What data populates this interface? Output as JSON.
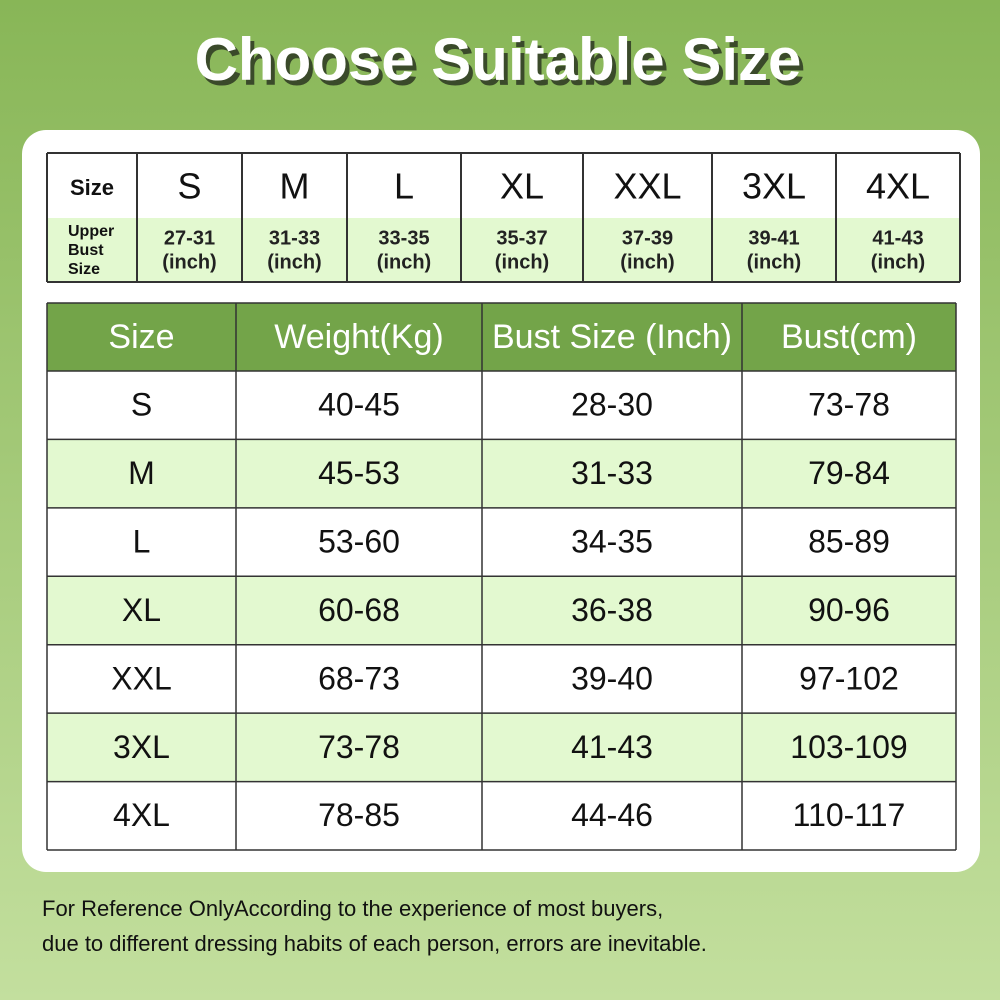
{
  "title": "Choose Suitable Size",
  "top_table": {
    "header": [
      "Size",
      "S",
      "M",
      "L",
      "XL",
      "XXL",
      "3XL",
      "4XL"
    ],
    "row": [
      [
        "Upper",
        "Bust",
        "Size"
      ],
      [
        "27-31",
        "(inch)"
      ],
      [
        "31-33",
        "(inch)"
      ],
      [
        "33-35",
        "(inch)"
      ],
      [
        "35-37",
        "(inch)"
      ],
      [
        "37-39",
        "(inch)"
      ],
      [
        "39-41",
        "(inch)"
      ],
      [
        "41-43",
        "(inch)"
      ]
    ]
  },
  "table": {
    "header": [
      "Size",
      "Weight(Kg)",
      "Bust Size (Inch)",
      "Bust(cm)"
    ],
    "rows": [
      [
        "S",
        "40-45",
        "28-30",
        "73-78"
      ],
      [
        "M",
        "45-53",
        "31-33",
        "79-84"
      ],
      [
        "L",
        "53-60",
        "34-35",
        "85-89"
      ],
      [
        "XL",
        "60-68",
        "36-38",
        "90-96"
      ],
      [
        "XXL",
        "68-73",
        "39-40",
        "97-102"
      ],
      [
        "3XL",
        "73-78",
        "41-43",
        "103-109"
      ],
      [
        "4XL",
        "78-85",
        "44-46",
        "110-117"
      ]
    ]
  },
  "note": [
    "For Reference OnlyAccording to the experience of most buyers,",
    "due to different dressing habits of each person, errors are inevitable."
  ]
}
